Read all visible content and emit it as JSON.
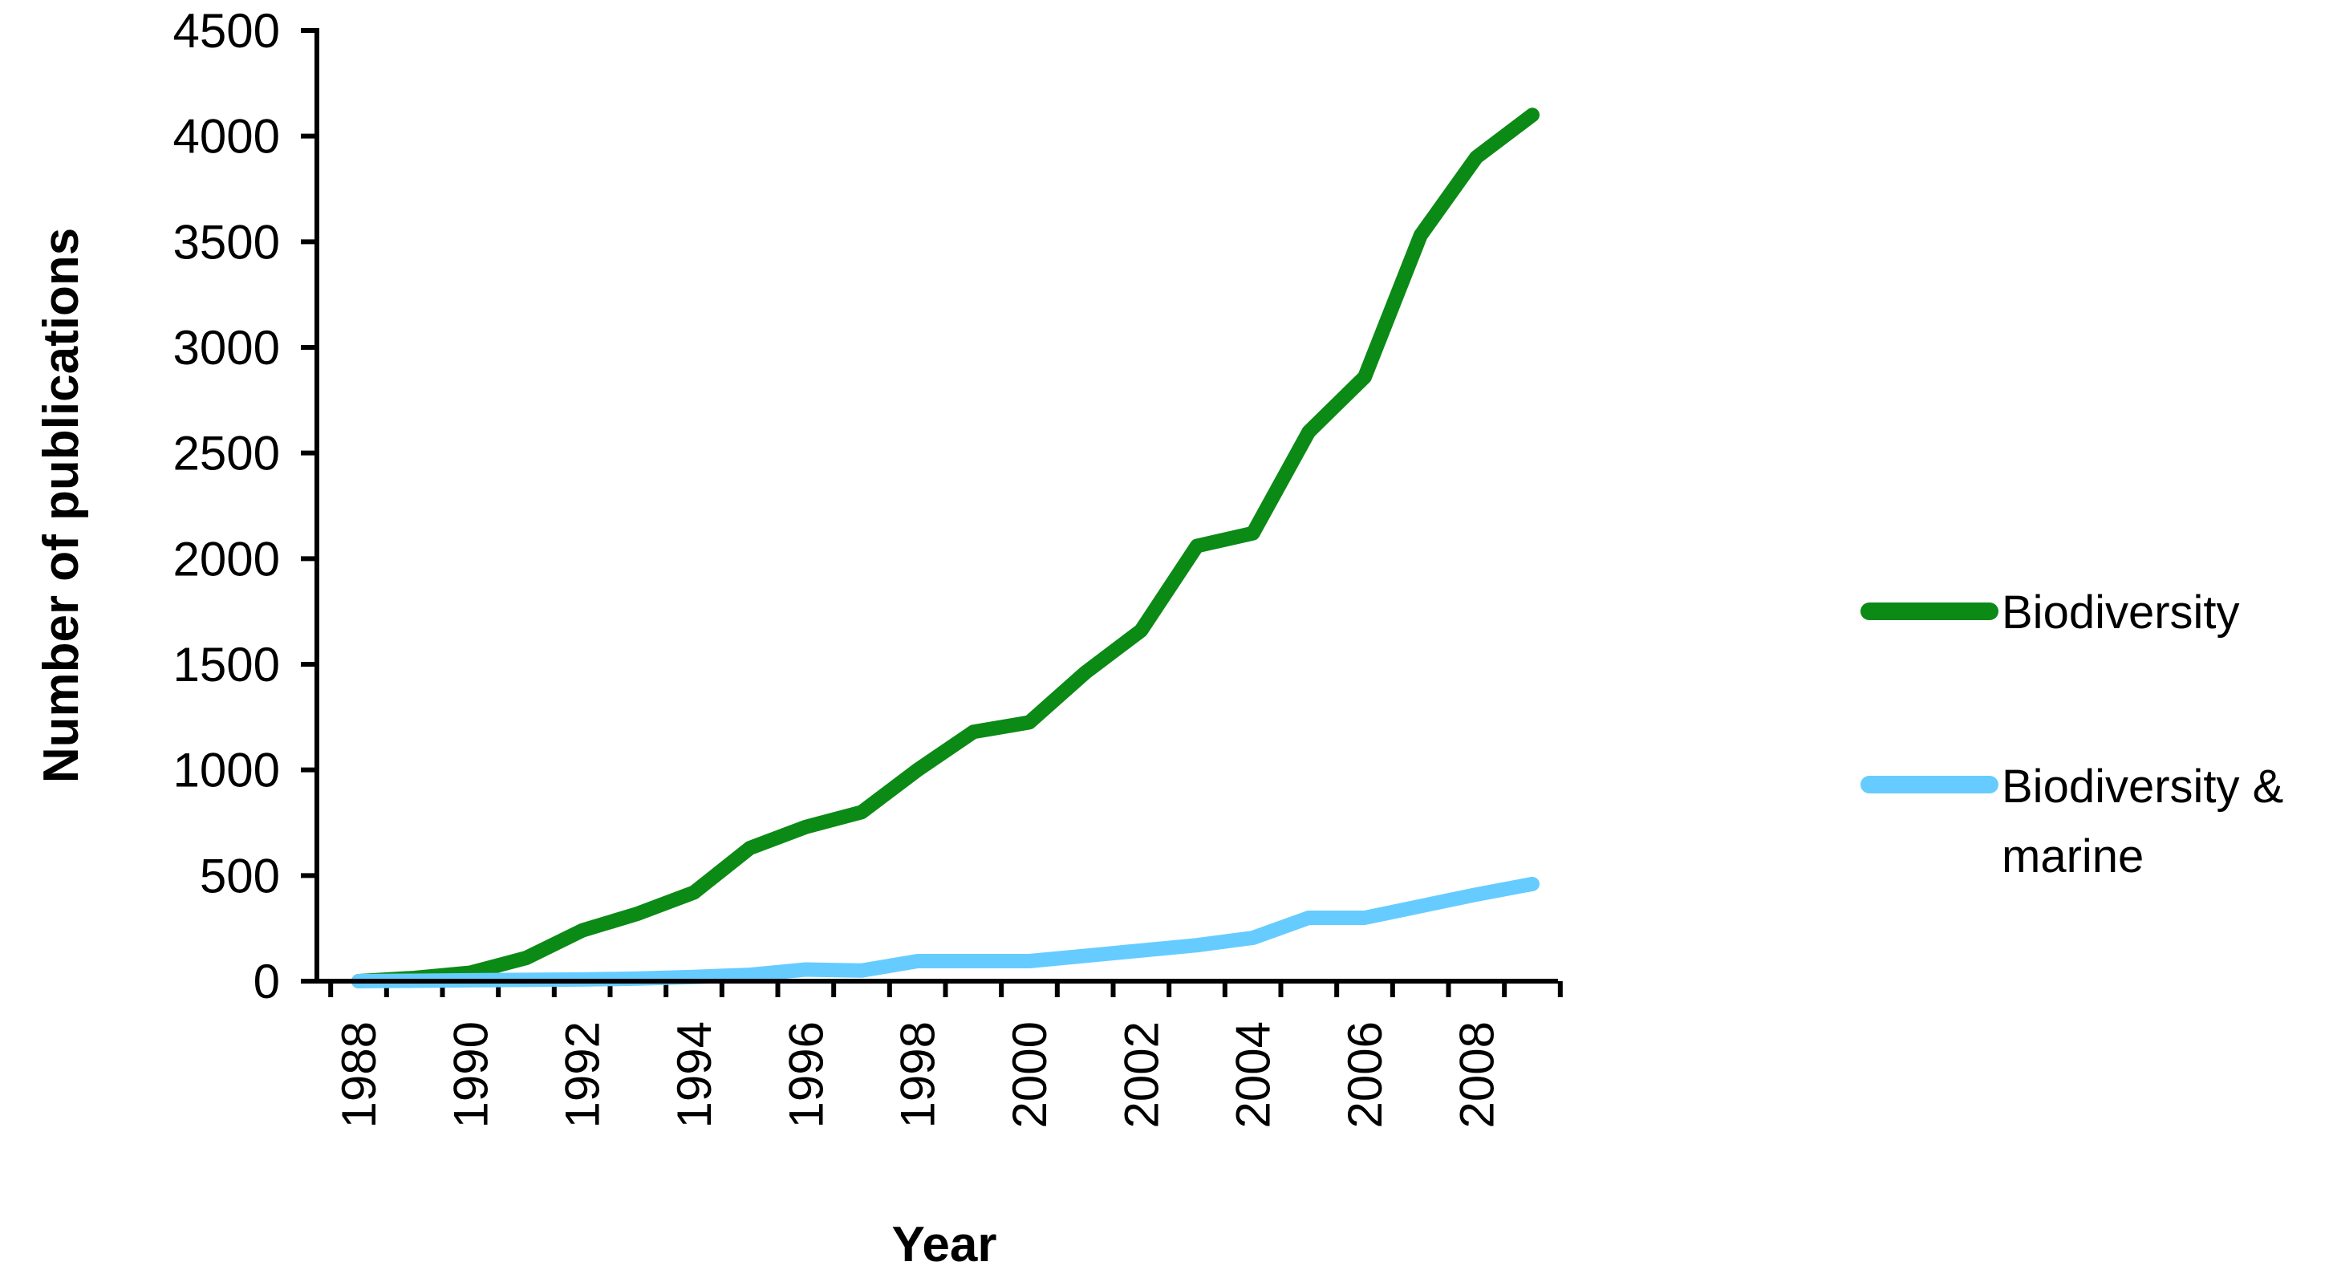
{
  "chart_data": {
    "type": "line",
    "title": "",
    "xlabel": "Year",
    "ylabel": "Number of publications",
    "x": [
      1988,
      1989,
      1990,
      1991,
      1992,
      1993,
      1994,
      1995,
      1996,
      1997,
      1998,
      1999,
      2000,
      2001,
      2002,
      2003,
      2004,
      2005,
      2006,
      2007,
      2008,
      2009
    ],
    "x_tick_labels": [
      "1988",
      "1990",
      "1992",
      "1994",
      "1996",
      "1998",
      "2000",
      "2002",
      "2004",
      "2006",
      "2008"
    ],
    "y_tick_labels": [
      "0",
      "500",
      "1000",
      "1500",
      "2000",
      "2500",
      "3000",
      "3500",
      "4000",
      "4500"
    ],
    "ylim": [
      0,
      4500
    ],
    "xlim": [
      1988,
      2009
    ],
    "grid": false,
    "legend_position": "right",
    "series": [
      {
        "name": "Biodiversity",
        "color": "#0b8a16",
        "values": [
          0,
          15,
          40,
          110,
          240,
          320,
          420,
          630,
          730,
          800,
          1000,
          1180,
          1225,
          1460,
          1660,
          2060,
          2120,
          2600,
          2860,
          3530,
          3900,
          4100
        ]
      },
      {
        "name": "Biodiversity & marine",
        "name_lines": [
          "Biodiversity &",
          "marine"
        ],
        "color": "#66ccff",
        "values": [
          0,
          2,
          4,
          6,
          8,
          12,
          20,
          30,
          55,
          50,
          95,
          95,
          95,
          120,
          145,
          170,
          205,
          300,
          300,
          355,
          410,
          460
        ]
      }
    ]
  }
}
